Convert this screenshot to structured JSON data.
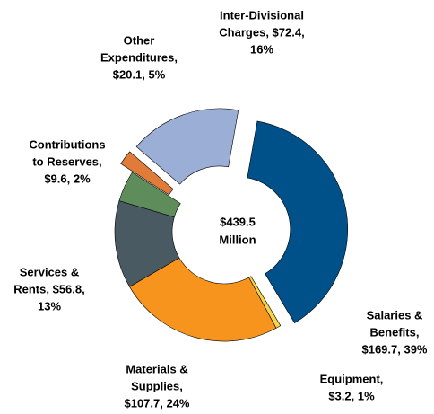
{
  "chart_data": {
    "type": "donut",
    "categories": [
      "Salaries & Benefits",
      "Equipment",
      "Materials & Supplies",
      "Services & Rents",
      "Other Expenditures",
      "Contributions to Reserves",
      "Inter-Divisional Charges"
    ],
    "values": [
      169.7,
      3.2,
      107.7,
      56.8,
      20.1,
      9.6,
      72.4
    ],
    "value_labels": [
      [
        "Salaries &",
        "Benefits,",
        "$169.7, 39%"
      ],
      [
        "Equipment,",
        "$3.2, 1%"
      ],
      [
        "Materials &",
        "Supplies,",
        "$107.7, 24%"
      ],
      [
        "Services &",
        "Rents, $56.8,",
        "13%"
      ],
      [
        "Other",
        "Expenditures,",
        "$20.1, 5%"
      ],
      [
        "Contributions",
        "to Reserves,",
        "$9.6, 2%"
      ],
      [
        "Inter-Divisional",
        "Charges, $72.4,",
        "16%"
      ]
    ],
    "colors": [
      "#00508a",
      "#f5d44a",
      "#f7941d",
      "#4a5a63",
      "#5e8c5a",
      "#e07b39",
      "#9aaed6"
    ],
    "exploded": [
      true,
      false,
      false,
      false,
      false,
      true,
      true
    ],
    "center_label": [
      "$439.5",
      "Million"
    ]
  }
}
